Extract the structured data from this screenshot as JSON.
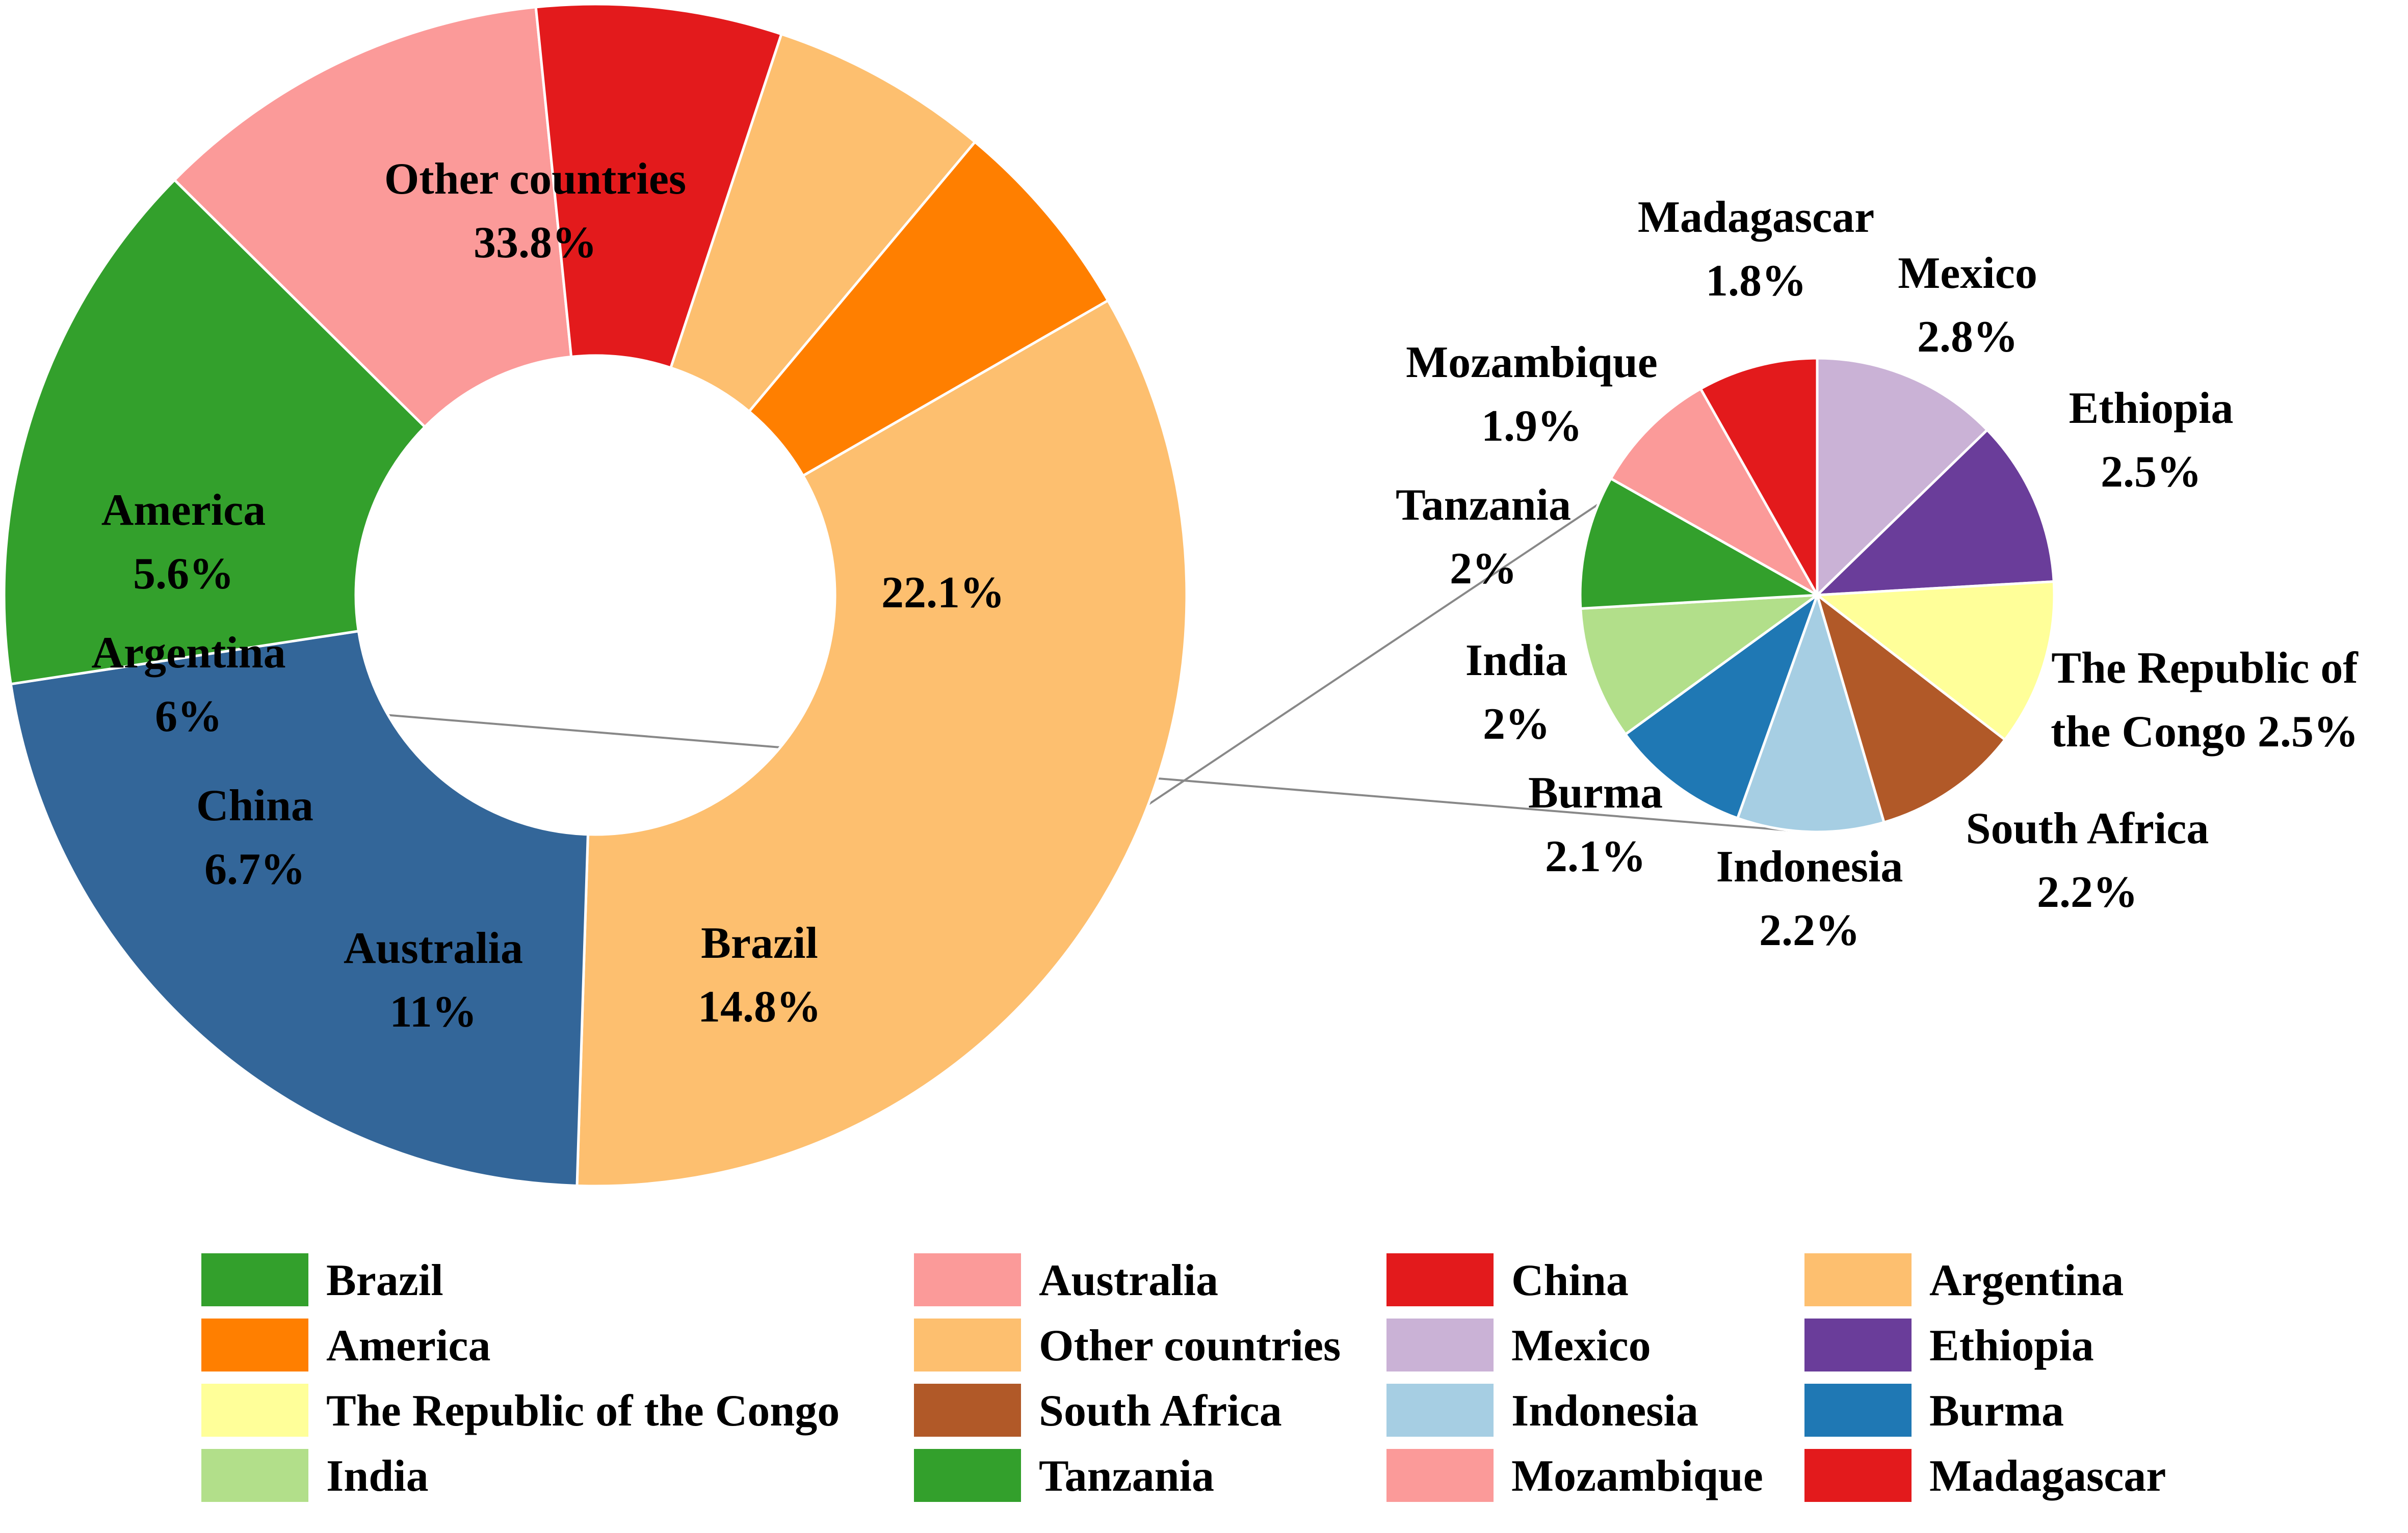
{
  "chart_data": [
    {
      "type": "donut",
      "slices": [
        {
          "label": "Other countries",
          "value_label": "33.8%",
          "value": 33.8,
          "color": "#FDBF6F"
        },
        {
          "label": "",
          "value_label": "22.1%",
          "value": 22.1,
          "color": "#336699",
          "note_value": "sum of the countries shown in the pie"
        },
        {
          "label": "Brazil",
          "value_label": "14.8%",
          "value": 14.8,
          "color": "#33A02C"
        },
        {
          "label": "Australia",
          "value_label": "11%",
          "value": 11.0,
          "color": "#FB9A99"
        },
        {
          "label": "China",
          "value_label": "6.7%",
          "value": 6.7,
          "color": "#E31A1C"
        },
        {
          "label": "Argentina",
          "value_label": "6%",
          "value": 6.0,
          "color": "#FDBF6F"
        },
        {
          "label": "America",
          "value_label": "5.6%",
          "value": 5.6,
          "color": "#FF7F00"
        }
      ]
    },
    {
      "type": "pie",
      "slices": [
        {
          "label": "Mexico",
          "value_label": "2.8%",
          "value": 2.8,
          "color": "#CAB2D6"
        },
        {
          "label": "Ethiopia",
          "value_label": "2.5%",
          "value": 2.5,
          "color": "#6A3D9A"
        },
        {
          "label": "The Republic of the Congo",
          "value_label": "2.5%",
          "value": 2.5,
          "color": "#FFFF99"
        },
        {
          "label": "South Africa",
          "value_label": "2.2%",
          "value": 2.2,
          "color": "#B15928"
        },
        {
          "label": "Indonesia",
          "value_label": "2.2%",
          "value": 2.2,
          "color": "#A6CEE3"
        },
        {
          "label": "Burma",
          "value_label": "2.1%",
          "value": 2.1,
          "color": "#1F78B4"
        },
        {
          "label": "India",
          "value_label": "2%",
          "value": 2.0,
          "color": "#B2DF8A"
        },
        {
          "label": "Tanzania",
          "value_label": "2%",
          "value": 2.0,
          "color": "#33A02C"
        },
        {
          "label": "Mozambique",
          "value_label": "1.9%",
          "value": 1.9,
          "color": "#FB9A99"
        },
        {
          "label": "Madagascar",
          "value_label": "1.8%",
          "value": 1.8,
          "color": "#E31A1C"
        }
      ]
    }
  ],
  "pie_label_texts": {
    "congo_line1": "The Republic of",
    "congo_line2": "the Congo 2.5%"
  },
  "legend": [
    {
      "label": "Brazil",
      "color": "#33A02C"
    },
    {
      "label": "Australia",
      "color": "#FB9A99"
    },
    {
      "label": "China",
      "color": "#E31A1C"
    },
    {
      "label": "Argentina",
      "color": "#FDBF6F"
    },
    {
      "label": "America",
      "color": "#FF7F00"
    },
    {
      "label": "Other countries",
      "color": "#FDBF6F"
    },
    {
      "label": "Mexico",
      "color": "#CAB2D6"
    },
    {
      "label": "Ethiopia",
      "color": "#6A3D9A"
    },
    {
      "label": "The Republic of the Congo",
      "color": "#FFFF99"
    },
    {
      "label": "South Africa",
      "color": "#B15928"
    },
    {
      "label": "Indonesia",
      "color": "#A6CEE3"
    },
    {
      "label": "Burma",
      "color": "#1F78B4"
    },
    {
      "label": "India",
      "color": "#B2DF8A"
    },
    {
      "label": "Tanzania",
      "color": "#33A02C"
    },
    {
      "label": "Mozambique",
      "color": "#FB9A99"
    },
    {
      "label": "Madagascar",
      "color": "#E31A1C"
    }
  ]
}
